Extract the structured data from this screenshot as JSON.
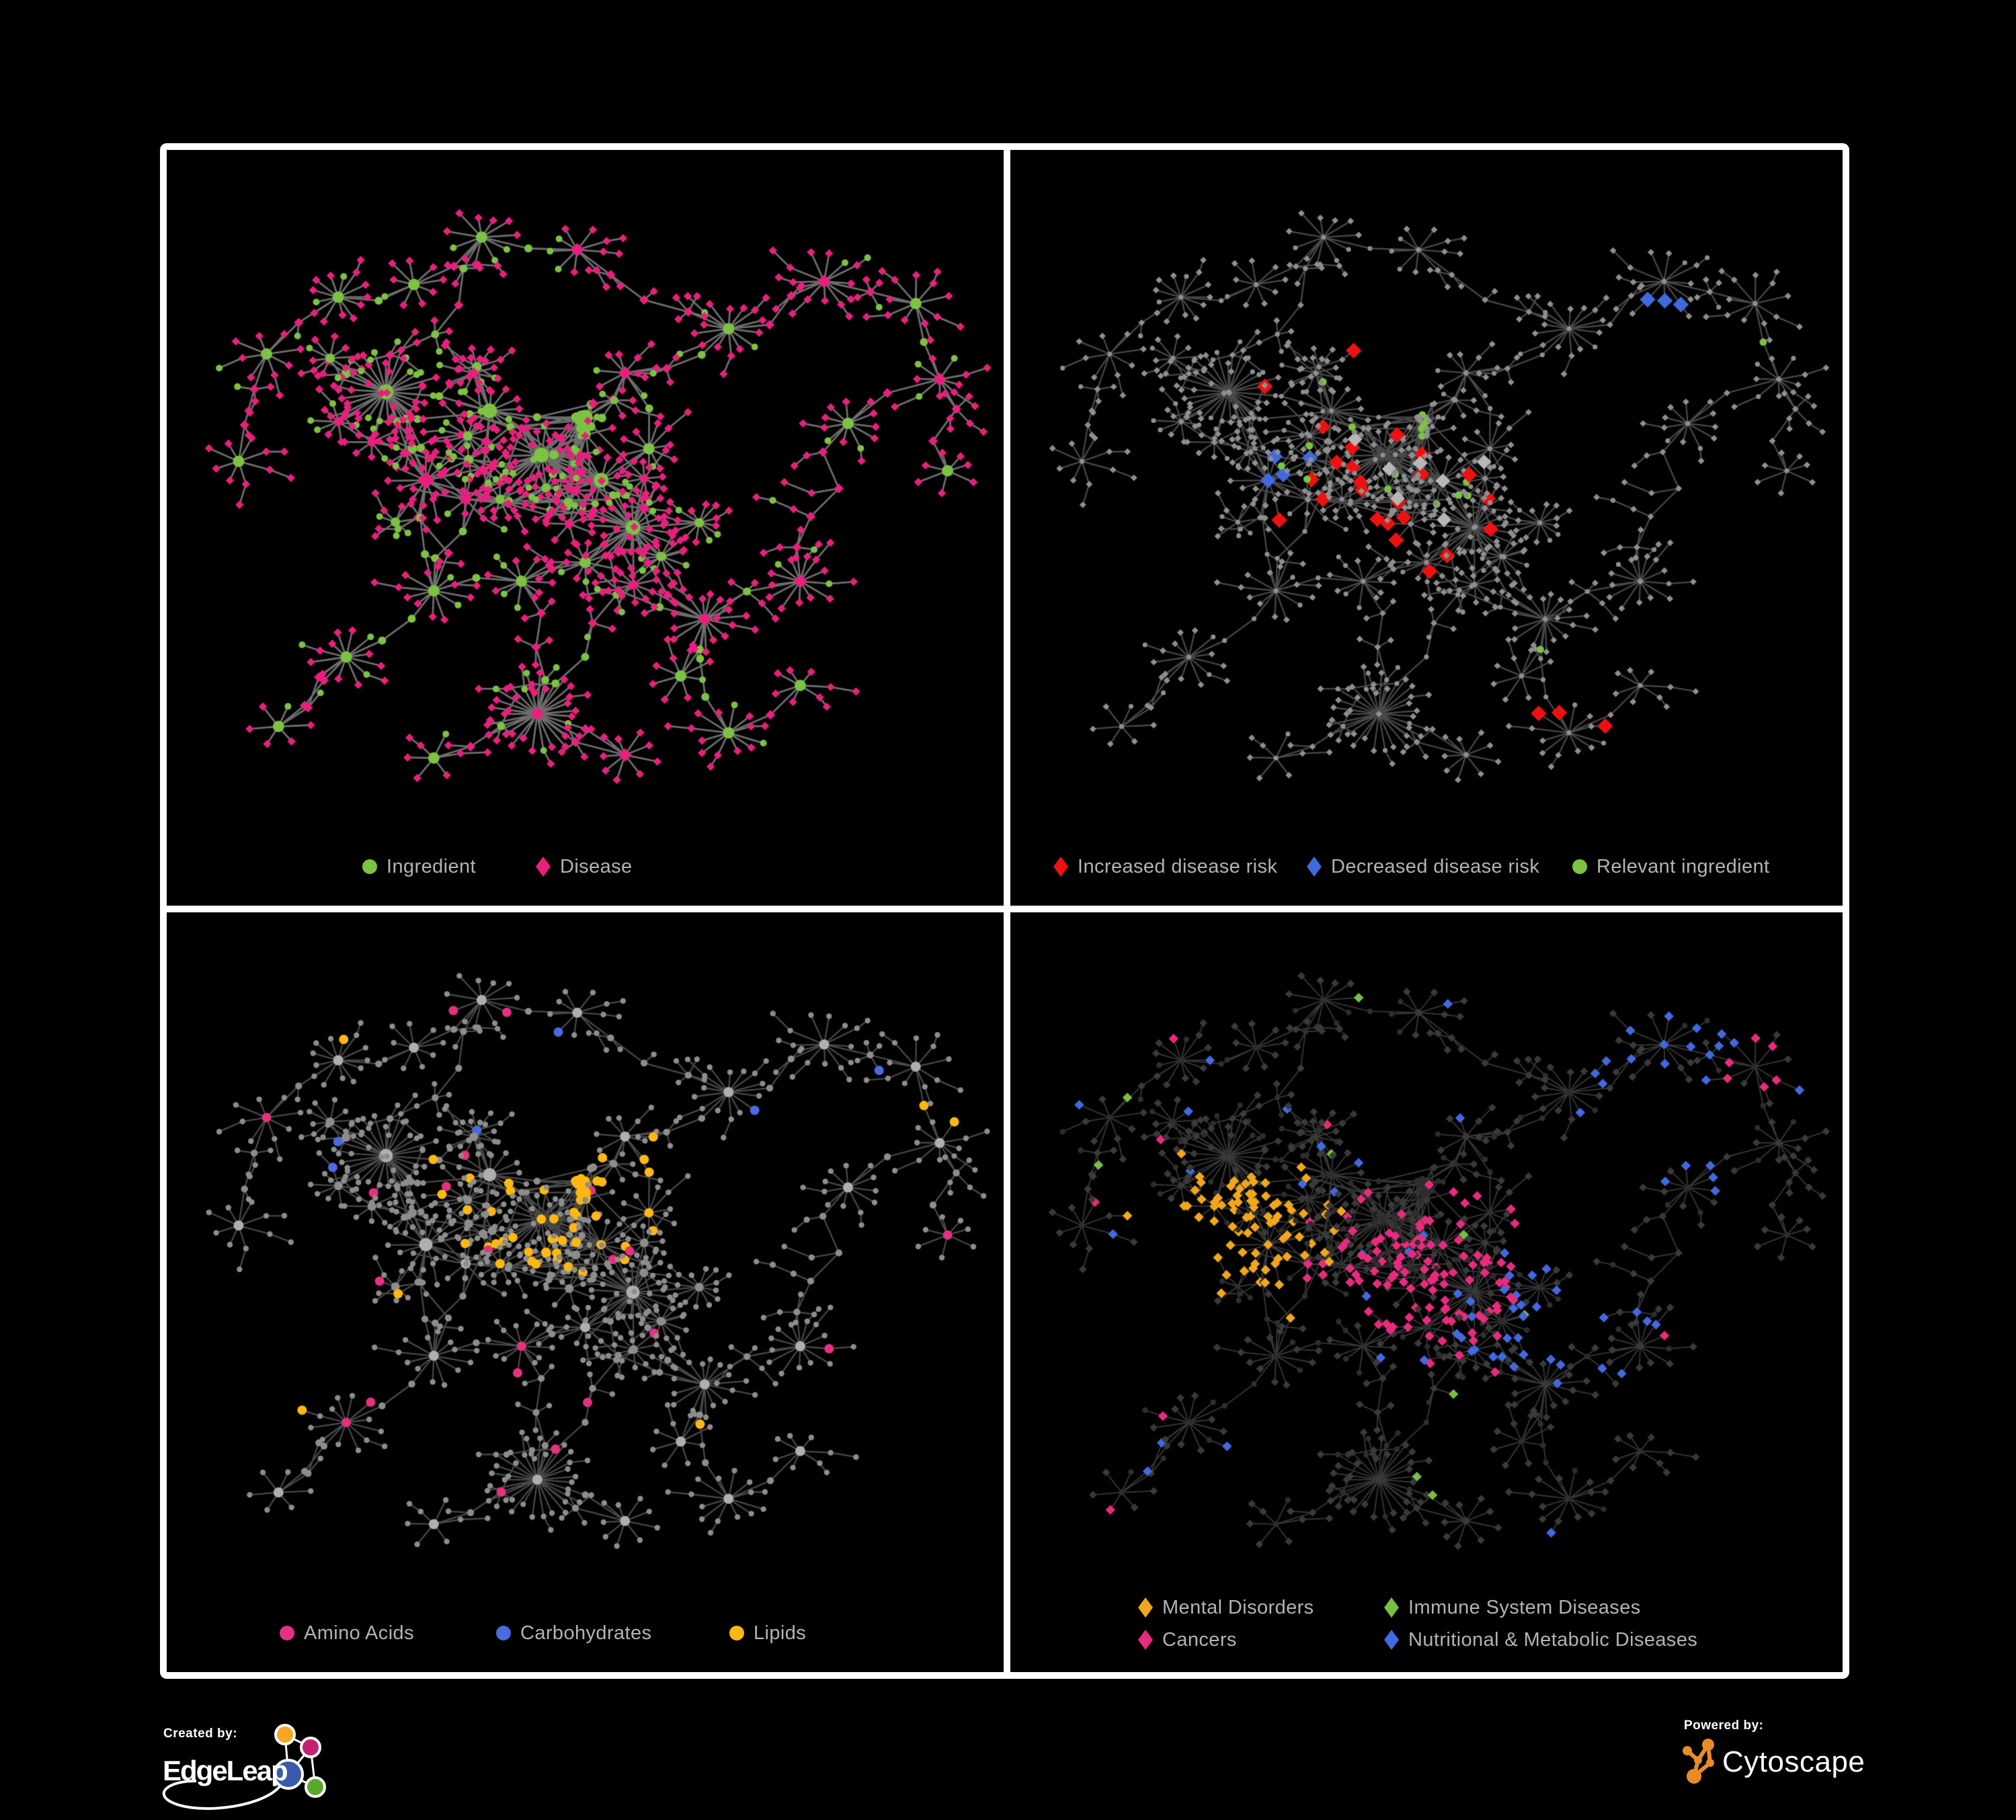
{
  "page": {
    "background": "#000000",
    "frame_color": "#ffffff"
  },
  "panels": [
    {
      "id": "ingredient-disease",
      "legend": [
        {
          "label": "Ingredient",
          "shape": "circle",
          "color": "#7DC242"
        },
        {
          "label": "Disease",
          "shape": "diamond",
          "color": "#E91F7D"
        }
      ]
    },
    {
      "id": "disease-risk",
      "legend": [
        {
          "label": "Increased disease risk",
          "shape": "diamond",
          "color": "#EE1111"
        },
        {
          "label": "Decreased disease risk",
          "shape": "diamond",
          "color": "#4169DD"
        },
        {
          "label": "Relevant ingredient",
          "shape": "circle",
          "color": "#7DC242"
        }
      ]
    },
    {
      "id": "ingredient-classes",
      "legend": [
        {
          "label": "Amino Acids",
          "shape": "circle",
          "color": "#E5317F"
        },
        {
          "label": "Carbohydrates",
          "shape": "circle",
          "color": "#4A6BE0"
        },
        {
          "label": "Lipids",
          "shape": "circle",
          "color": "#FDB813"
        }
      ]
    },
    {
      "id": "disease-categories",
      "legend": [
        {
          "label": "Mental Disorders",
          "shape": "diamond",
          "color": "#F2A71B"
        },
        {
          "label": "Immune System Diseases",
          "shape": "diamond",
          "color": "#77C043"
        },
        {
          "label": "Cancers",
          "shape": "diamond",
          "color": "#E82B7E"
        },
        {
          "label": "Nutritional & Metabolic Diseases",
          "shape": "diamond",
          "color": "#4169E1"
        }
      ]
    }
  ],
  "network_colors": {
    "edge_a": "rgba(128,128,128,0.85)",
    "edge_b": "rgba(120,120,120,0.6)",
    "edge_d": "rgba(155,155,155,0.35)",
    "ingredient_green": "#7DC242",
    "disease_pink": "#E91F7D",
    "risk_red": "#EE1111",
    "risk_blue": "#4169DD",
    "risk_gray": "#B7B7B7",
    "base_gray": "#8F8F8F",
    "hub_gray": "#AFAFAF",
    "amino_pink": "#E5317F",
    "carb_blue": "#4A6BE0",
    "lipid_yellow": "#FDB813",
    "mental_orange": "#F2A71B",
    "immune_green": "#77C043",
    "cancer_pink": "#E82B7E",
    "nutri_blue": "#4169E1",
    "dark_diamond": "#3A3A3A",
    "dark_circle": "#2E2E2E"
  },
  "footer": {
    "created_by_label": "Created by:",
    "created_by_name": "EdgeLeap",
    "powered_by_label": "Powered by:",
    "powered_by_name": "Cytoscape"
  }
}
